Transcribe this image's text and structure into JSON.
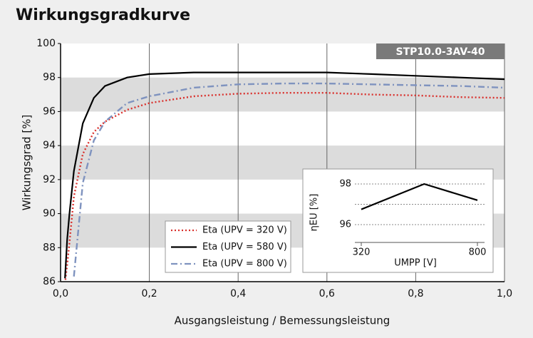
{
  "chart_data": [
    {
      "type": "line",
      "title": "Wirkungsgradkurve",
      "label": "STP10.0-3AV-40",
      "x_label": "Ausgangsleistung / Bemessungsleistung",
      "y_label": "Wirkungsgrad [%]",
      "x": [
        0.01,
        0.015,
        0.02,
        0.03,
        0.05,
        0.075,
        0.1,
        0.15,
        0.2,
        0.3,
        0.4,
        0.5,
        0.6,
        0.7,
        0.8,
        0.9,
        1.0
      ],
      "series": [
        {
          "name": "Eta (UPV = 320 V)",
          "color": "#d9302c",
          "style": "dotted",
          "values": [
            85.9,
            87.0,
            88.3,
            91.0,
            93.5,
            94.8,
            95.4,
            96.1,
            96.5,
            96.9,
            97.05,
            97.1,
            97.1,
            97.0,
            96.95,
            96.85,
            96.8
          ]
        },
        {
          "name": "Eta (UPV = 580 V)",
          "color": "#000000",
          "style": "solid",
          "values": [
            86.2,
            88.5,
            90.0,
            92.5,
            95.3,
            96.8,
            97.5,
            98.0,
            98.2,
            98.3,
            98.3,
            98.3,
            98.3,
            98.2,
            98.1,
            98.0,
            97.9
          ]
        },
        {
          "name": "Eta (UPV = 800 V)",
          "color": "#7f93bf",
          "style": "dashdot",
          "values": [
            null,
            null,
            null,
            86.3,
            91.8,
            94.3,
            95.4,
            96.5,
            96.9,
            97.4,
            97.6,
            97.65,
            97.65,
            97.6,
            97.55,
            97.5,
            97.4
          ]
        }
      ],
      "xlim": [
        0,
        1
      ],
      "ylim": [
        86,
        100
      ],
      "xticks": [
        {
          "value": 0,
          "label": "0,0"
        },
        {
          "value": 0.2,
          "label": "0,2"
        },
        {
          "value": 0.4,
          "label": "0,4"
        },
        {
          "value": 0.6,
          "label": "0,6"
        },
        {
          "value": 0.8,
          "label": "0,8"
        },
        {
          "value": 1,
          "label": "1,0"
        }
      ],
      "yticks": [
        86,
        88,
        90,
        92,
        94,
        96,
        98,
        100
      ]
    },
    {
      "type": "line",
      "x_label": "UMPP [V]",
      "y_label": "ηEU [%]",
      "x": [
        320,
        580,
        800
      ],
      "series": [
        {
          "color": "#000000",
          "values": [
            96.75,
            98.0,
            97.2
          ]
        }
      ],
      "xlim": [
        320,
        800
      ],
      "ylim": [
        96,
        98
      ],
      "xticks": [
        320,
        800
      ],
      "yticks": [
        96,
        98
      ]
    }
  ]
}
